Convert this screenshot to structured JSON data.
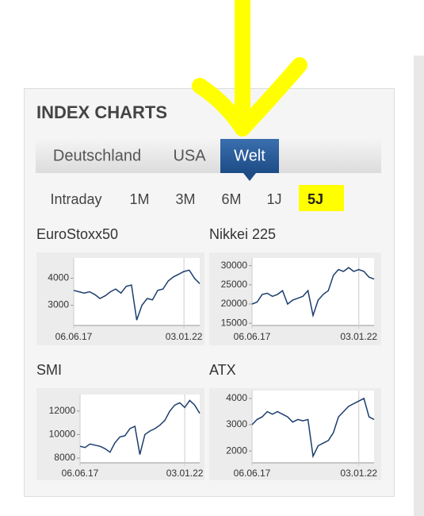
{
  "header": {
    "title": "INDEX CHARTS"
  },
  "tabs": {
    "items": [
      "Deutschland",
      "USA",
      "Welt"
    ],
    "active": 2
  },
  "periods": {
    "items": [
      "Intraday",
      "1M",
      "3M",
      "6M",
      "1J",
      "5J"
    ],
    "active": 5
  },
  "chart_data": [
    {
      "type": "line",
      "title": "EuroStoxx50",
      "color": "#1b3d6e",
      "categories": [
        "06.06.17",
        null,
        null,
        null,
        null,
        null,
        null,
        null,
        null,
        null,
        null,
        null,
        null,
        null,
        null,
        null,
        null,
        null,
        null,
        null,
        null,
        "03.01.22",
        null,
        null,
        null
      ],
      "values": [
        3550,
        3500,
        3450,
        3500,
        3400,
        3250,
        3350,
        3500,
        3600,
        3450,
        3700,
        3750,
        2450,
        3000,
        3250,
        3200,
        3550,
        3600,
        3900,
        4050,
        4150,
        4250,
        4300,
        4000,
        3800
      ],
      "ylim": [
        2250,
        4750
      ],
      "yticks": [
        3000,
        4000
      ]
    },
    {
      "type": "line",
      "title": "Nikkei 225",
      "color": "#1b3d6e",
      "categories": [
        "06.06.17",
        null,
        null,
        null,
        null,
        null,
        null,
        null,
        null,
        null,
        null,
        null,
        null,
        null,
        null,
        null,
        null,
        null,
        null,
        null,
        null,
        "03.01.22",
        null,
        null,
        null
      ],
      "values": [
        20000,
        20500,
        22500,
        22800,
        22000,
        22500,
        23500,
        20000,
        21000,
        21500,
        22000,
        23500,
        17000,
        21000,
        22500,
        23500,
        27500,
        29000,
        28500,
        29500,
        28500,
        29000,
        28500,
        27000,
        26500
      ],
      "ylim": [
        14400,
        32000
      ],
      "yticks": [
        15000,
        20000,
        25000,
        30000
      ]
    },
    {
      "type": "line",
      "title": "SMI",
      "color": "#1b3d6e",
      "categories": [
        "06.06.17",
        null,
        null,
        null,
        null,
        null,
        null,
        null,
        null,
        null,
        null,
        null,
        null,
        null,
        null,
        null,
        null,
        null,
        null,
        null,
        null,
        "03.01.22",
        null,
        null,
        null
      ],
      "values": [
        9000,
        8900,
        9200,
        9100,
        9000,
        8800,
        8500,
        9300,
        9800,
        9900,
        10500,
        10700,
        8300,
        10000,
        10300,
        10500,
        10800,
        11200,
        12000,
        12500,
        12700,
        12300,
        12900,
        12500,
        11800
      ],
      "ylim": [
        7600,
        13400
      ],
      "yticks": [
        8000,
        10000,
        12000
      ]
    },
    {
      "type": "line",
      "title": "ATX",
      "color": "#1b3d6e",
      "categories": [
        "06.06.17",
        null,
        null,
        null,
        null,
        null,
        null,
        null,
        null,
        null,
        null,
        null,
        null,
        null,
        null,
        null,
        null,
        null,
        null,
        null,
        null,
        "03.01.22",
        null,
        null,
        null
      ],
      "values": [
        3000,
        3200,
        3300,
        3500,
        3400,
        3500,
        3400,
        3300,
        3100,
        3200,
        3150,
        3200,
        1800,
        2200,
        2300,
        2400,
        2700,
        3300,
        3500,
        3700,
        3800,
        3900,
        4000,
        3300,
        3200
      ],
      "ylim": [
        1550,
        4300
      ],
      "yticks": [
        2000,
        3000,
        4000
      ]
    }
  ]
}
